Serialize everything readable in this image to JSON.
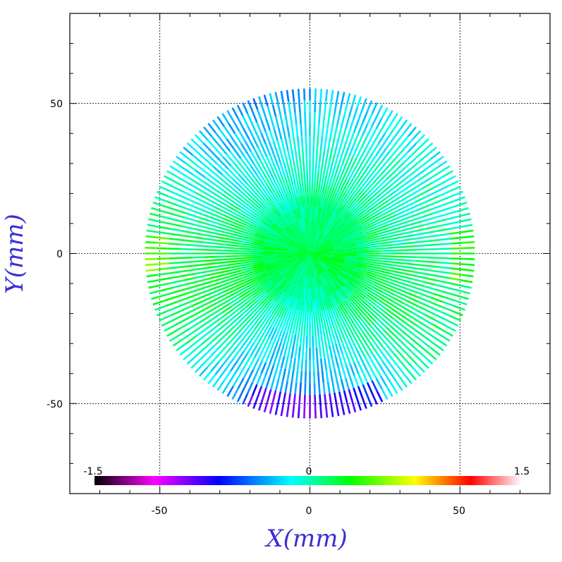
{
  "chart_data": {
    "type": "heatmap",
    "xlabel": "X(mm)",
    "ylabel": "Y(mm)",
    "xlim": [
      -80,
      80
    ],
    "ylim": [
      -80,
      80
    ],
    "x_ticks": [
      -50,
      0,
      50
    ],
    "y_ticks": [
      -50,
      0,
      50
    ],
    "x_tick_labels": [
      "-50",
      "0",
      "50"
    ],
    "y_tick_labels": [
      "-50",
      "0",
      "50"
    ],
    "grid": true,
    "pattern": "radial spokes within circular aperture",
    "aperture_radius": 55,
    "spoke_count": 180,
    "colorbar": {
      "min": -1.5,
      "max": 1.5,
      "labels": [
        "-1.5",
        "0",
        "1.5"
      ],
      "placement": "bottom inside plot",
      "colormap_stops": [
        "#000000",
        "#ff00ff",
        "#0000ff",
        "#00ffff",
        "#00ff00",
        "#ffff00",
        "#ff0000",
        "#ffffff"
      ]
    }
  }
}
